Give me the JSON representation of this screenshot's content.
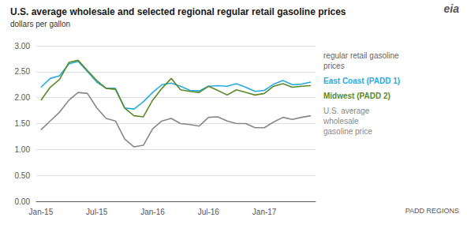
{
  "chart_data": {
    "type": "line",
    "title": "U.S. average wholesale and selected regional regular retail gasoline prices",
    "subtitle": "dollars per gallon",
    "categories": [
      "Jan-15",
      null,
      null,
      null,
      null,
      null,
      "Jul-15",
      null,
      null,
      null,
      null,
      null,
      "Jan-16",
      null,
      null,
      null,
      null,
      null,
      "Jul-16",
      null,
      null,
      null,
      null,
      null,
      "Jan-17",
      null,
      null,
      null,
      null,
      null
    ],
    "series": [
      {
        "name": "East Coast (PADD 1)",
        "color": "#29abe2",
        "values": [
          2.2,
          2.37,
          2.42,
          2.65,
          2.7,
          2.5,
          2.3,
          2.18,
          2.18,
          1.8,
          1.78,
          1.92,
          2.1,
          2.25,
          2.28,
          2.22,
          2.14,
          2.13,
          2.22,
          2.23,
          2.22,
          2.27,
          2.2,
          2.12,
          2.14,
          2.26,
          2.33,
          2.25,
          2.26,
          2.3
        ]
      },
      {
        "name": "Midwest (PADD 2)",
        "color": "#5a8a28",
        "values": [
          1.95,
          2.2,
          2.35,
          2.68,
          2.72,
          2.52,
          2.33,
          2.18,
          2.16,
          1.8,
          1.65,
          1.63,
          1.95,
          2.18,
          2.37,
          2.15,
          2.12,
          2.1,
          2.22,
          2.14,
          2.05,
          2.15,
          2.1,
          2.05,
          2.08,
          2.22,
          2.27,
          2.2,
          2.22,
          2.23
        ]
      },
      {
        "name": "U.S. average\nwholesale\ngasoline price",
        "color": "#888888",
        "values": [
          1.38,
          1.55,
          1.72,
          1.95,
          2.1,
          2.08,
          1.8,
          1.6,
          1.55,
          1.2,
          1.05,
          1.08,
          1.4,
          1.55,
          1.6,
          1.5,
          1.48,
          1.45,
          1.62,
          1.63,
          1.55,
          1.5,
          1.5,
          1.42,
          1.42,
          1.53,
          1.62,
          1.58,
          1.62,
          1.65
        ]
      }
    ],
    "ylim": [
      0.0,
      3.0
    ],
    "yticks": [
      {
        "value": 0.0,
        "label": "0.00"
      },
      {
        "value": 0.5,
        "label": "0.50"
      },
      {
        "value": 1.0,
        "label": "1.00"
      },
      {
        "value": 1.5,
        "label": "1.50"
      },
      {
        "value": 2.0,
        "label": "2.00"
      },
      {
        "value": 2.5,
        "label": "2.50"
      },
      {
        "value": 3.0,
        "label": "3.00"
      }
    ],
    "grid": true,
    "annotations": [
      "regular retail gasoline\nprices",
      "eia",
      "PADD REGIONS"
    ]
  }
}
